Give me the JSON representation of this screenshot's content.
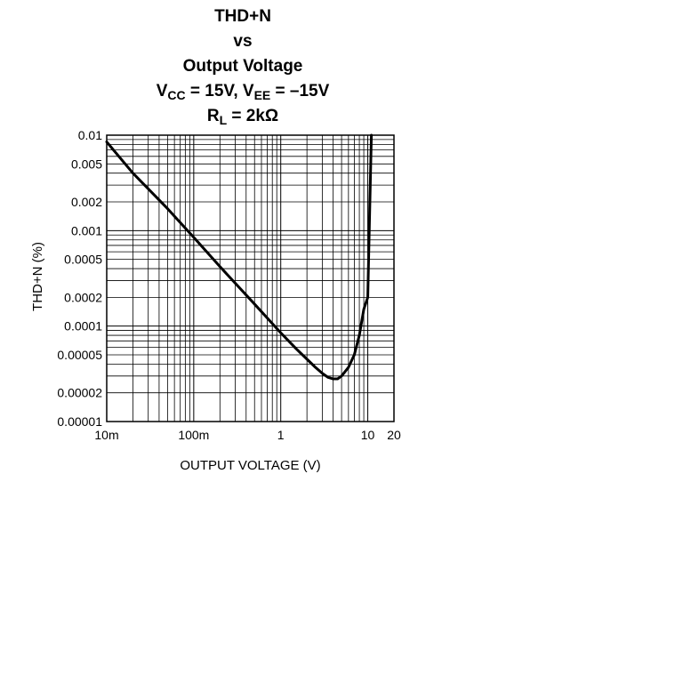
{
  "chart_data": {
    "type": "line",
    "title": {
      "line1": "THD+N",
      "line2": "vs",
      "line3": "Output Voltage",
      "line4_vcc_main": "V",
      "line4_vcc_sub": "CC",
      "line4_mid": " = 15V, V",
      "line4_vee_sub": "EE",
      "line4_end": " = –15V",
      "line5_main": "R",
      "line5_sub": "L",
      "line5_end": " = 2kΩ"
    },
    "xlabel": "OUTPUT VOLTAGE (V)",
    "ylabel": "THD+N (%)",
    "x_scale": "log",
    "y_scale": "log",
    "xlim": [
      0.01,
      20
    ],
    "ylim": [
      1e-05,
      0.01
    ],
    "grid": true,
    "x_ticks": [
      {
        "value": 0.01,
        "label": "10m"
      },
      {
        "value": 0.1,
        "label": "100m"
      },
      {
        "value": 1,
        "label": "1"
      },
      {
        "value": 10,
        "label": "10"
      },
      {
        "value": 20,
        "label": "20"
      }
    ],
    "y_ticks": [
      {
        "value": 0.01,
        "label": "0.01"
      },
      {
        "value": 0.005,
        "label": "0.005"
      },
      {
        "value": 0.002,
        "label": "0.002"
      },
      {
        "value": 0.001,
        "label": "0.001"
      },
      {
        "value": 0.0005,
        "label": "0.0005"
      },
      {
        "value": 0.0002,
        "label": "0.0002"
      },
      {
        "value": 0.0001,
        "label": "0.0001"
      },
      {
        "value": 5e-05,
        "label": "0.00005"
      },
      {
        "value": 2e-05,
        "label": "0.00002"
      },
      {
        "value": 1e-05,
        "label": "0.00001"
      }
    ],
    "series": [
      {
        "color": "#000000",
        "x": [
          0.01,
          0.02,
          0.05,
          0.1,
          0.2,
          0.5,
          1.0,
          1.5,
          2.0,
          2.5,
          3.0,
          3.5,
          4.0,
          4.5,
          5.0,
          6.0,
          7.0,
          8.0,
          9.0,
          10.0,
          10.5,
          11.0
        ],
        "y": [
          0.0085,
          0.004,
          0.0017,
          0.00085,
          0.00042,
          0.00017,
          8.5e-05,
          5.8e-05,
          4.5e-05,
          3.7e-05,
          3.2e-05,
          2.9e-05,
          2.8e-05,
          2.8e-05,
          3e-05,
          3.7e-05,
          5e-05,
          8e-05,
          0.00015,
          0.0002,
          0.0015,
          0.01
        ]
      }
    ]
  }
}
